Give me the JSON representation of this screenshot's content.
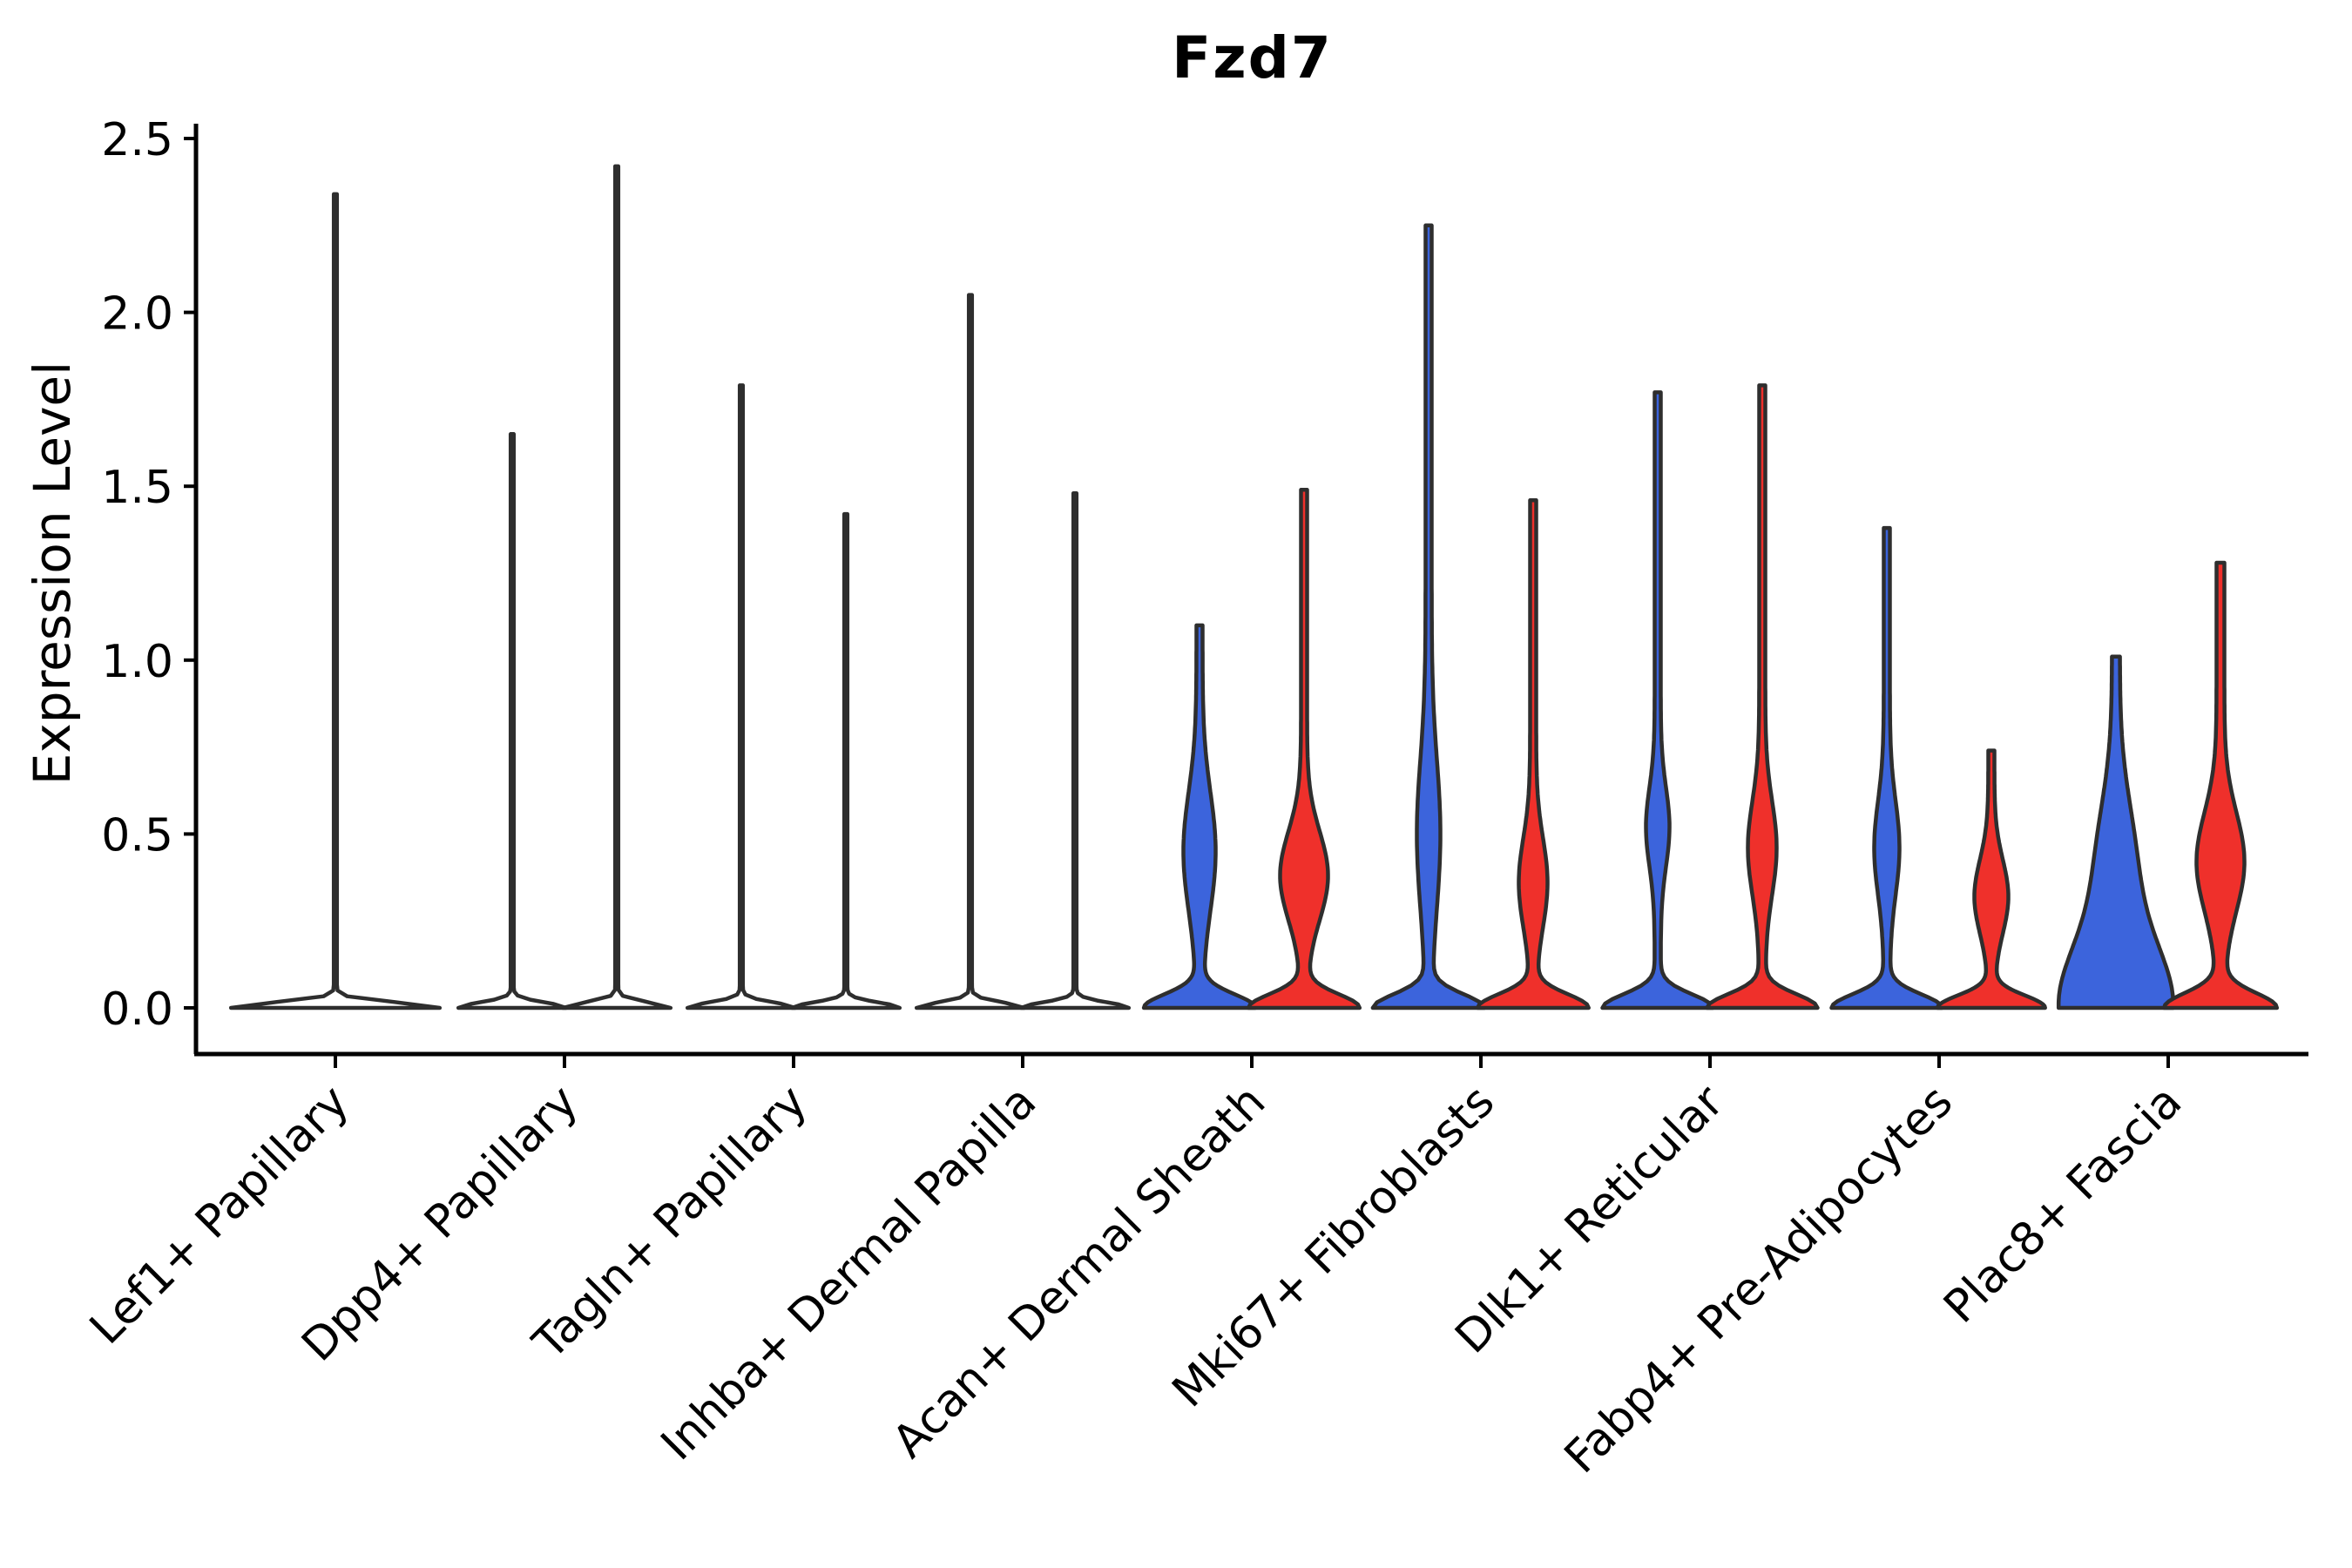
{
  "chart_data": {
    "type": "violin",
    "title": "Fzd7",
    "ylabel": "Expression Level",
    "xlabel": "",
    "ylim": [
      -0.13,
      2.55
    ],
    "yticks": [
      {
        "value": 0.0,
        "label": "0.0"
      },
      {
        "value": 0.5,
        "label": "0.5"
      },
      {
        "value": 1.0,
        "label": "1.0"
      },
      {
        "value": 1.5,
        "label": "1.5"
      },
      {
        "value": 2.0,
        "label": "2.0"
      },
      {
        "value": 2.5,
        "label": "2.5"
      }
    ],
    "x_tick_rotation_deg": 45,
    "legend": "none",
    "grid": "off",
    "split_violin_pairs": true,
    "colors": {
      "left_fill": "#3C64DC",
      "right_fill": "#EF302B",
      "unfilled": "#FFFFFF",
      "outline": "#2E2E2E",
      "text": "#000000",
      "background": "#FFFFFF"
    },
    "categories": [
      {
        "label": "Lef1+ Papillary",
        "violins": [
          {
            "pos": "center",
            "fill": "none",
            "max": 2.34,
            "base_hw": 118,
            "base_decay": 0.022,
            "spike_hw": 1.8,
            "bulge_hw": 0,
            "bulge_center": 0,
            "bulge_spread": 1
          }
        ]
      },
      {
        "label": "Dpp4+ Papillary",
        "violins": [
          {
            "pos": "left",
            "fill": "none",
            "max": 1.65,
            "base_hw": 60,
            "base_decay": 0.022,
            "spike_hw": 1.8,
            "bulge_hw": 0,
            "bulge_center": 0,
            "bulge_spread": 1
          },
          {
            "pos": "right",
            "fill": "none",
            "max": 2.42,
            "base_hw": 60,
            "base_decay": 0.022,
            "spike_hw": 1.8,
            "bulge_hw": 0,
            "bulge_center": 0,
            "bulge_spread": 1
          }
        ]
      },
      {
        "label": "Tagln+ Papillary",
        "violins": [
          {
            "pos": "left",
            "fill": "none",
            "max": 1.79,
            "base_hw": 60,
            "base_decay": 0.022,
            "spike_hw": 1.8,
            "bulge_hw": 0,
            "bulge_center": 0,
            "bulge_spread": 1
          },
          {
            "pos": "right",
            "fill": "none",
            "max": 1.42,
            "base_hw": 60,
            "base_decay": 0.022,
            "spike_hw": 1.8,
            "bulge_hw": 0,
            "bulge_center": 0,
            "bulge_spread": 1
          }
        ]
      },
      {
        "label": "Inhba+ Dermal Papilla",
        "violins": [
          {
            "pos": "left",
            "fill": "none",
            "max": 2.05,
            "base_hw": 60,
            "base_decay": 0.022,
            "spike_hw": 1.8,
            "bulge_hw": 0,
            "bulge_center": 0,
            "bulge_spread": 1
          },
          {
            "pos": "right",
            "fill": "none",
            "max": 1.48,
            "base_hw": 60,
            "base_decay": 0.022,
            "spike_hw": 1.8,
            "bulge_hw": 0,
            "bulge_center": 0,
            "bulge_spread": 1
          }
        ]
      },
      {
        "label": "Acan+ Dermal Sheath",
        "violins": [
          {
            "pos": "left",
            "fill": "left",
            "max": 1.1,
            "base_hw": 60,
            "base_decay": 0.055,
            "spike_hw": 3.5,
            "bulge_hw": 15,
            "bulge_center": 0.45,
            "bulge_spread": 0.24
          },
          {
            "pos": "right",
            "fill": "right",
            "max": 1.49,
            "base_hw": 60,
            "base_decay": 0.055,
            "spike_hw": 3.5,
            "bulge_hw": 24,
            "bulge_center": 0.38,
            "bulge_spread": 0.18
          }
        ]
      },
      {
        "label": "Mki67+ Fibroblasts",
        "violins": [
          {
            "pos": "left",
            "fill": "left",
            "max": 2.25,
            "base_hw": 60,
            "base_decay": 0.055,
            "spike_hw": 3.5,
            "bulge_hw": 10,
            "bulge_center": 0.5,
            "bulge_spread": 0.3
          },
          {
            "pos": "right",
            "fill": "right",
            "max": 1.46,
            "base_hw": 60,
            "base_decay": 0.055,
            "spike_hw": 3.5,
            "bulge_hw": 13,
            "bulge_center": 0.36,
            "bulge_spread": 0.18
          }
        ]
      },
      {
        "label": "Dlk1+ Reticular",
        "violins": [
          {
            "pos": "left",
            "fill": "left",
            "max": 1.77,
            "base_hw": 60,
            "base_decay": 0.055,
            "spike_hw": 3.5,
            "bulge_hw": 10,
            "bulge_center": 0.52,
            "bulge_spread": 0.16
          },
          {
            "pos": "right",
            "fill": "right",
            "max": 1.79,
            "base_hw": 60,
            "base_decay": 0.055,
            "spike_hw": 3.5,
            "bulge_hw": 13,
            "bulge_center": 0.46,
            "bulge_spread": 0.19
          }
        ]
      },
      {
        "label": "Fabp4+ Pre-Adipocytes",
        "violins": [
          {
            "pos": "left",
            "fill": "left",
            "max": 1.38,
            "base_hw": 60,
            "base_decay": 0.055,
            "spike_hw": 3.5,
            "bulge_hw": 11,
            "bulge_center": 0.46,
            "bulge_spread": 0.19
          },
          {
            "pos": "right",
            "fill": "right",
            "max": 0.74,
            "base_hw": 58,
            "base_decay": 0.05,
            "spike_hw": 3.5,
            "bulge_hw": 16,
            "bulge_center": 0.32,
            "bulge_spread": 0.15
          }
        ]
      },
      {
        "label": "Plac8+ Fascia",
        "violins": [
          {
            "pos": "left",
            "fill": "left",
            "max": 1.01,
            "base_hw": 60,
            "base_decay": 0.26,
            "spike_hw": 4.5,
            "bulge_hw": 17,
            "bulge_center": 0.42,
            "bulge_spread": 0.26
          },
          {
            "pos": "right",
            "fill": "right",
            "max": 1.28,
            "base_hw": 60,
            "base_decay": 0.06,
            "spike_hw": 4.5,
            "bulge_hw": 23,
            "bulge_center": 0.42,
            "bulge_spread": 0.2
          }
        ]
      }
    ]
  }
}
